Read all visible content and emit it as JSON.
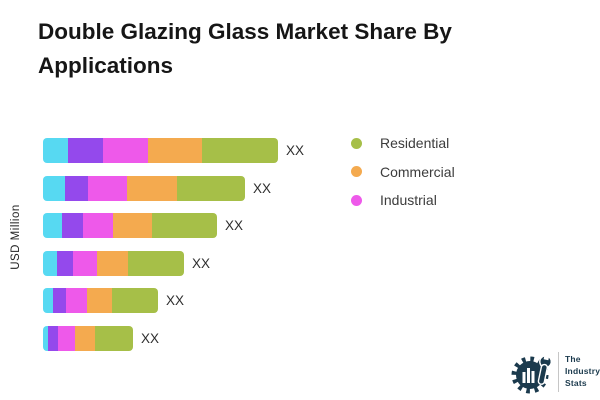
{
  "title": "Double Glazing Glass Market Share By Applications",
  "ylabel": "USD Million",
  "logo": {
    "line1": "The",
    "line2": "Industry",
    "line3": "Stats"
  },
  "chart_data": {
    "type": "bar",
    "orientation": "horizontal",
    "title": "Double Glazing Glass Market Share By Applications",
    "ylabel": "USD Million",
    "categories": [
      "",
      "",
      "",
      "",
      "",
      ""
    ],
    "value_labels": [
      "XX",
      "XX",
      "XX",
      "XX",
      "XX",
      "XX"
    ],
    "series": [
      {
        "name": "",
        "color": "#57d9f2",
        "values": [
          25,
          22,
          19,
          14,
          10,
          5
        ]
      },
      {
        "name": "",
        "color": "#9449ec",
        "values": [
          35,
          23,
          21,
          16,
          13,
          10
        ]
      },
      {
        "name": "Industrial",
        "color": "#ee59ea",
        "values": [
          45,
          39,
          30,
          24,
          21,
          17
        ]
      },
      {
        "name": "Commercial",
        "color": "#f4aa4f",
        "values": [
          54,
          50,
          39,
          31,
          25,
          20
        ]
      },
      {
        "name": "Residential",
        "color": "#a6bf48",
        "values": [
          76,
          68,
          65,
          56,
          46,
          38
        ]
      }
    ],
    "legend": [
      {
        "label": "Residential",
        "color": "#a6bf48"
      },
      {
        "label": "Commercial",
        "color": "#f4aa4f"
      },
      {
        "label": "Industrial",
        "color": "#ee59ea"
      }
    ],
    "legend_position": "right",
    "grid": false,
    "axis_lines": false,
    "units_note": "values masked as XX in source image"
  }
}
